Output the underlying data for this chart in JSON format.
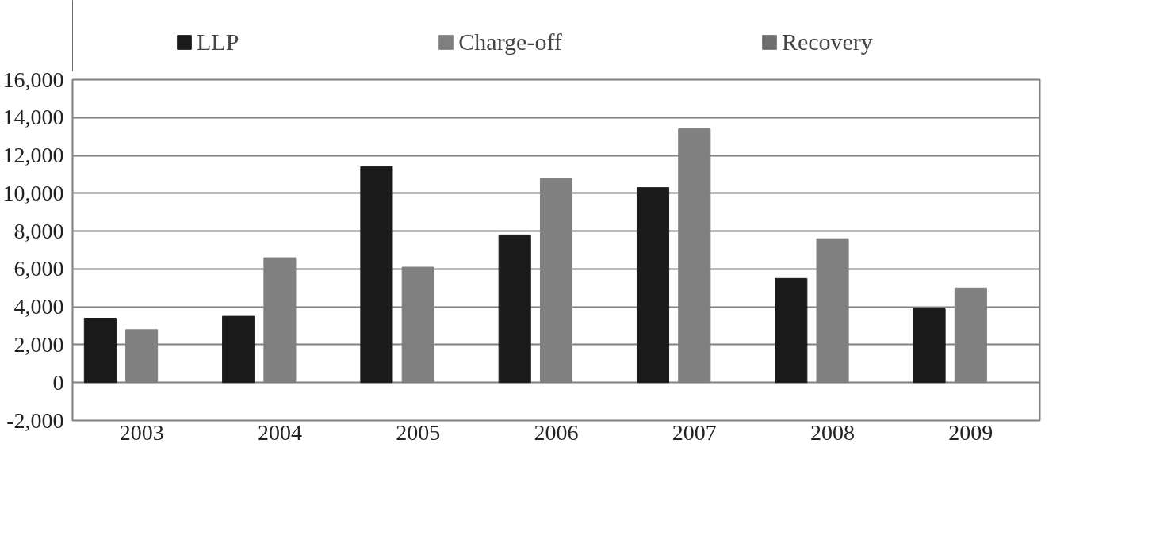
{
  "chart_data": {
    "type": "bar",
    "categories": [
      "2003",
      "2004",
      "2005",
      "2006",
      "2007",
      "2008",
      "2009"
    ],
    "series": [
      {
        "name": "LLP",
        "color": "#1a1a1a",
        "values": [
          3400,
          3500,
          11400,
          7800,
          10300,
          5500,
          3900
        ]
      },
      {
        "name": "Charge-off",
        "color": "#808080",
        "values": [
          2800,
          6600,
          6100,
          10800,
          13400,
          7600,
          5000
        ]
      },
      {
        "name": "Recovery",
        "color": "#6e6e6e",
        "values": [
          null,
          null,
          null,
          null,
          null,
          null,
          null
        ]
      }
    ],
    "ylim": [
      -2000,
      16000
    ],
    "yticks": [
      {
        "value": -2000,
        "label": "-2,000"
      },
      0,
      {
        "value": 2000,
        "label": "2,000"
      },
      {
        "value": 4000,
        "label": "4,000"
      },
      {
        "value": 6000,
        "label": "6,000"
      },
      {
        "value": 8000,
        "label": "8,000"
      },
      {
        "value": 10000,
        "label": "10,000"
      },
      {
        "value": 12000,
        "label": "12,000"
      },
      {
        "value": 14000,
        "label": "14,000"
      },
      {
        "value": 16000,
        "label": "16,000"
      }
    ],
    "grid": "y",
    "legend": "top"
  }
}
